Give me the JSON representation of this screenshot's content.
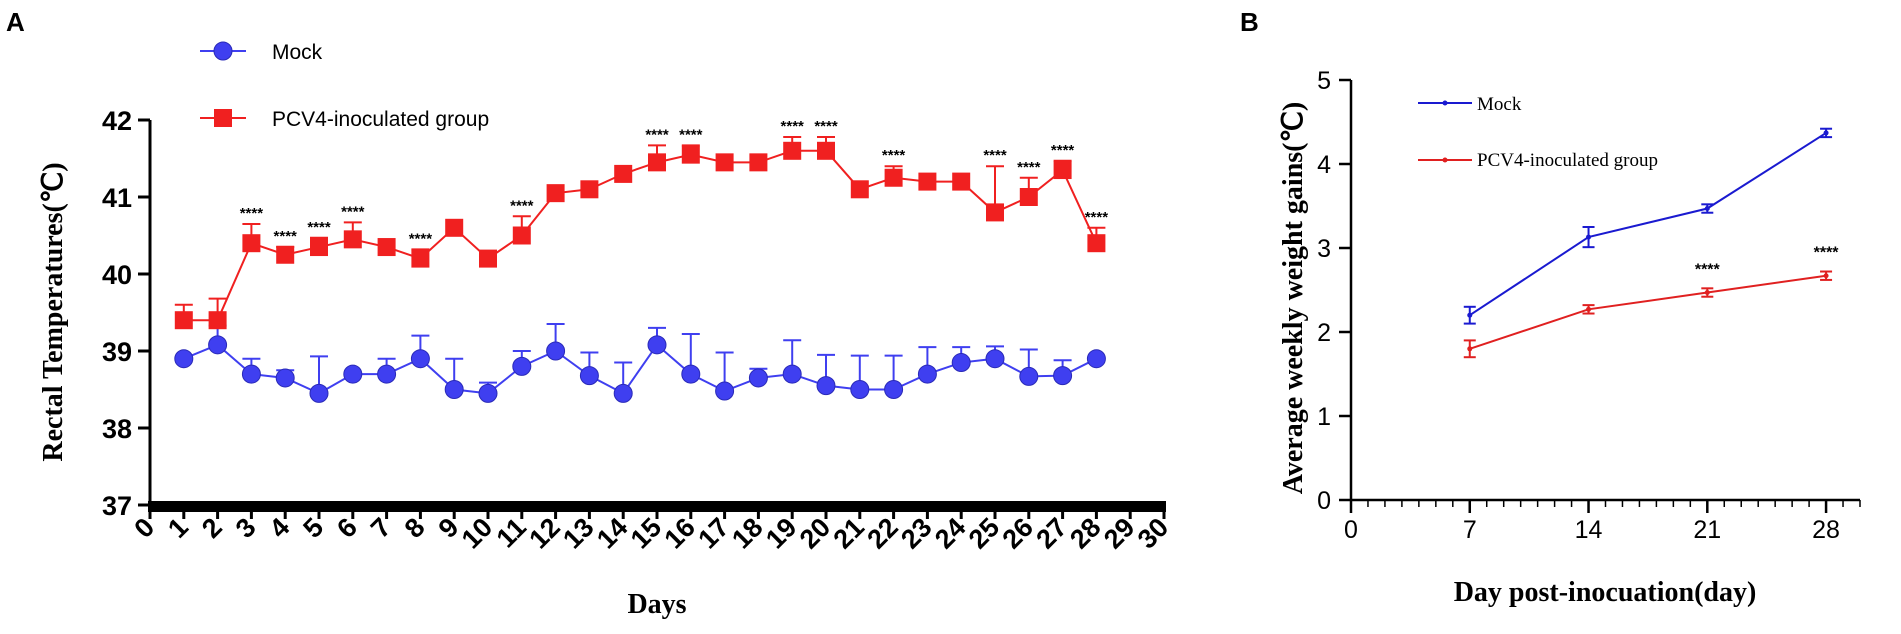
{
  "panels": {
    "A": {
      "label": "A"
    },
    "B": {
      "label": "B"
    }
  },
  "colors": {
    "mock_a": "#3f3ff0",
    "pcv4_a": "#f02020",
    "mock_b": "#1a1ad0",
    "pcv4_b": "#e02020",
    "axis": "#000000"
  },
  "chart_data": [
    {
      "type": "line",
      "panel": "A",
      "title": "",
      "xlabel": "Days",
      "ylabel": "Rectal Temperatures(℃)",
      "xlim": [
        0,
        30
      ],
      "ylim": [
        37,
        42
      ],
      "xticks": [
        0,
        1,
        2,
        3,
        4,
        5,
        6,
        7,
        8,
        9,
        10,
        11,
        12,
        13,
        14,
        15,
        16,
        17,
        18,
        19,
        20,
        21,
        22,
        23,
        24,
        25,
        26,
        27,
        28,
        29,
        30
      ],
      "yticks": [
        37,
        38,
        39,
        40,
        41,
        42
      ],
      "legend_position": "top-left",
      "x": [
        1,
        2,
        3,
        4,
        5,
        6,
        7,
        8,
        9,
        10,
        11,
        12,
        13,
        14,
        15,
        16,
        17,
        18,
        19,
        20,
        21,
        22,
        23,
        24,
        25,
        26,
        27,
        28
      ],
      "series": [
        {
          "name": "Mock",
          "marker": "circle",
          "values": [
            38.9,
            39.08,
            38.7,
            38.65,
            38.45,
            38.7,
            38.7,
            38.9,
            38.5,
            38.45,
            38.8,
            39.0,
            38.68,
            38.45,
            39.08,
            38.7,
            38.48,
            38.65,
            38.7,
            38.55,
            38.5,
            38.5,
            38.7,
            38.85,
            38.9,
            38.67,
            38.68,
            38.9
          ],
          "errors": [
            0.0,
            0.25,
            0.2,
            0.1,
            0.48,
            0.0,
            0.2,
            0.3,
            0.4,
            0.14,
            0.2,
            0.35,
            0.3,
            0.4,
            0.22,
            0.52,
            0.5,
            0.12,
            0.44,
            0.4,
            0.44,
            0.44,
            0.35,
            0.2,
            0.16,
            0.35,
            0.2,
            0.0
          ],
          "annotations": []
        },
        {
          "name": "PCV4-inoculated group",
          "marker": "square",
          "values": [
            39.4,
            39.4,
            40.4,
            40.25,
            40.35,
            40.45,
            40.35,
            40.2,
            40.6,
            40.2,
            40.5,
            41.05,
            41.1,
            41.3,
            41.45,
            41.55,
            41.45,
            41.45,
            41.6,
            41.6,
            41.1,
            41.25,
            41.2,
            41.2,
            40.8,
            41.0,
            41.35,
            40.4
          ],
          "errors": [
            0.2,
            0.28,
            0.25,
            0.1,
            0.12,
            0.22,
            0.0,
            0.12,
            0.0,
            0.0,
            0.25,
            0.0,
            0.0,
            0.0,
            0.22,
            0.12,
            0.0,
            0.0,
            0.18,
            0.18,
            0.0,
            0.15,
            0.0,
            0.0,
            0.6,
            0.25,
            0.12,
            0.2
          ],
          "annotations": [
            "",
            "",
            "****",
            "****",
            "****",
            "****",
            "",
            "****",
            "",
            "",
            "****",
            "",
            "",
            "",
            "****",
            "****",
            "",
            "",
            "****",
            "****",
            "",
            "****",
            "",
            "",
            "****",
            "****",
            "****",
            "****"
          ]
        }
      ]
    },
    {
      "type": "line",
      "panel": "B",
      "title": "",
      "xlabel": "Day post-inocuation(day)",
      "ylabel": "Average weekly weight gains(℃)",
      "xlim": [
        0,
        30
      ],
      "ylim": [
        0,
        5
      ],
      "xticks": [
        0,
        7,
        14,
        21,
        28
      ],
      "yticks": [
        0,
        1,
        2,
        3,
        4,
        5
      ],
      "legend_position": "top-left",
      "x": [
        7,
        14,
        21,
        28
      ],
      "series": [
        {
          "name": "Mock",
          "values": [
            2.2,
            3.13,
            3.47,
            4.37
          ],
          "errors": [
            0.1,
            0.12,
            0.05,
            0.05
          ],
          "annotations": [
            "",
            "",
            "",
            ""
          ]
        },
        {
          "name": "PCV4-inoculated group",
          "values": [
            1.8,
            2.27,
            2.47,
            2.67
          ],
          "errors": [
            0.1,
            0.05,
            0.05,
            0.05
          ],
          "annotations": [
            "",
            "",
            "****",
            "****"
          ]
        }
      ]
    }
  ]
}
